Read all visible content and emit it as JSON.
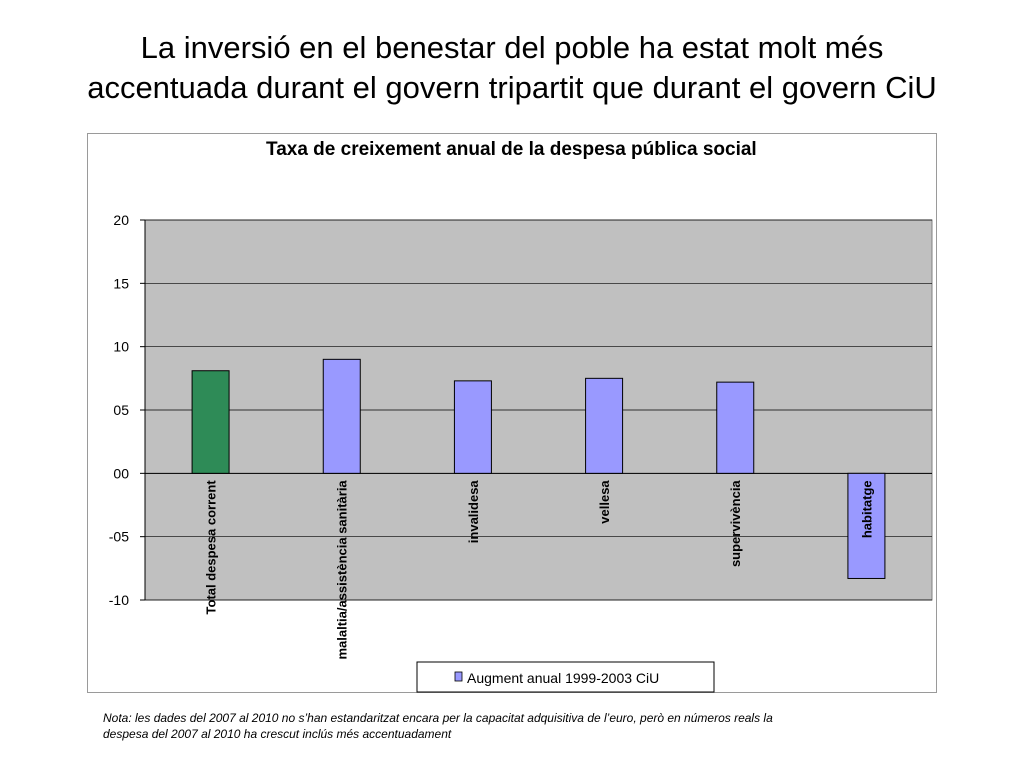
{
  "slide": {
    "title_line1": "La inversió en el benestar del poble ha estat molt més",
    "title_line2": "accentuada durant el govern tripartit que durant el govern CiU",
    "note_line1": "Nota: les dades del 2007 al 2010 no s’han estandaritzat encara per la capacitat adquisitiva de l’euro, però en números reals la",
    "note_line2": "despesa del 2007 al 2010 ha crescut inclús més accentuadament"
  },
  "chart_data": {
    "type": "bar",
    "title": "Taxa de creixement anual de la despesa pública social",
    "categories": [
      "Total despesa corrent",
      "malaltia/assistència sanitària",
      "invalidesa",
      "vellesa",
      "supervivència",
      "habitatge"
    ],
    "series": [
      {
        "name": "Augment anual 1999-2003 CiU",
        "values": [
          8.1,
          9.0,
          7.3,
          7.5,
          7.2,
          -8.3
        ]
      }
    ],
    "bar_colors": [
      "#2e8b57",
      "#9999ff",
      "#9999ff",
      "#9999ff",
      "#9999ff",
      "#9999ff"
    ],
    "y_tick_labels": [
      "-10",
      "-05",
      "00",
      "05",
      "10",
      "15",
      "20"
    ],
    "y_ticks": [
      -10,
      -5,
      0,
      5,
      10,
      15,
      20
    ],
    "ylim": [
      -10,
      20
    ],
    "grid": true,
    "plot_background": "#c0c0c0",
    "legend_position": "bottom-center",
    "xlabel": "",
    "ylabel": ""
  }
}
